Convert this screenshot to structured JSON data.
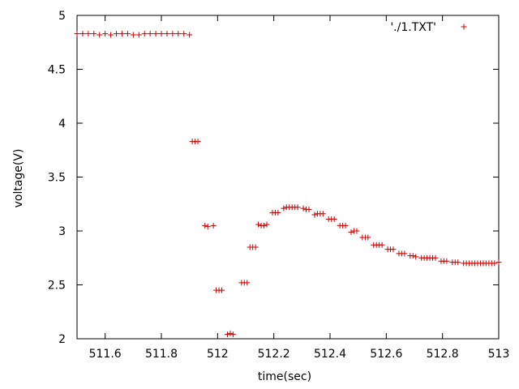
{
  "chart_data": {
    "type": "scatter",
    "xlabel": "time(sec)",
    "ylabel": "voltage(V)",
    "xlim": [
      511.5,
      513
    ],
    "ylim": [
      2,
      5
    ],
    "x_ticks": [
      "511.6",
      "511.8",
      "512",
      "512.2",
      "512.4",
      "512.6",
      "512.8",
      "513"
    ],
    "x_tick_values": [
      511.6,
      511.8,
      512.0,
      512.2,
      512.4,
      512.6,
      512.8,
      513.0
    ],
    "y_ticks": [
      "2",
      "2.5",
      "3",
      "3.5",
      "4",
      "4.5",
      "5"
    ],
    "y_tick_values": [
      2,
      2.5,
      3,
      3.5,
      4,
      4.5,
      5
    ],
    "grid": false,
    "legend_position": "top-right",
    "series": [
      {
        "name": "'./1.TXT'",
        "color": "#cc0000",
        "marker": "plus",
        "points": [
          [
            511.5,
            4.83
          ],
          [
            511.52,
            4.83
          ],
          [
            511.54,
            4.83
          ],
          [
            511.56,
            4.83
          ],
          [
            511.58,
            4.82
          ],
          [
            511.6,
            4.83
          ],
          [
            511.62,
            4.82
          ],
          [
            511.64,
            4.83
          ],
          [
            511.66,
            4.83
          ],
          [
            511.68,
            4.83
          ],
          [
            511.7,
            4.82
          ],
          [
            511.72,
            4.82
          ],
          [
            511.74,
            4.83
          ],
          [
            511.76,
            4.83
          ],
          [
            511.78,
            4.83
          ],
          [
            511.8,
            4.83
          ],
          [
            511.82,
            4.83
          ],
          [
            511.84,
            4.83
          ],
          [
            511.86,
            4.83
          ],
          [
            511.88,
            4.83
          ],
          [
            511.9,
            4.82
          ],
          [
            511.91,
            3.83
          ],
          [
            511.92,
            3.83
          ],
          [
            511.93,
            3.83
          ],
          [
            511.955,
            3.05
          ],
          [
            511.965,
            3.04
          ],
          [
            511.985,
            3.05
          ],
          [
            511.995,
            2.45
          ],
          [
            512.005,
            2.45
          ],
          [
            512.015,
            2.45
          ],
          [
            512.035,
            2.04
          ],
          [
            512.045,
            2.05
          ],
          [
            512.055,
            2.04
          ],
          [
            512.085,
            2.52
          ],
          [
            512.095,
            2.52
          ],
          [
            512.105,
            2.52
          ],
          [
            512.115,
            2.85
          ],
          [
            512.125,
            2.85
          ],
          [
            512.135,
            2.85
          ],
          [
            512.145,
            3.06
          ],
          [
            512.155,
            3.05
          ],
          [
            512.165,
            3.05
          ],
          [
            512.175,
            3.06
          ],
          [
            512.195,
            3.17
          ],
          [
            512.205,
            3.17
          ],
          [
            512.215,
            3.17
          ],
          [
            512.235,
            3.21
          ],
          [
            512.245,
            3.22
          ],
          [
            512.255,
            3.22
          ],
          [
            512.265,
            3.22
          ],
          [
            512.275,
            3.22
          ],
          [
            512.285,
            3.22
          ],
          [
            512.305,
            3.21
          ],
          [
            512.315,
            3.2
          ],
          [
            512.325,
            3.2
          ],
          [
            512.345,
            3.15
          ],
          [
            512.355,
            3.16
          ],
          [
            512.365,
            3.16
          ],
          [
            512.375,
            3.16
          ],
          [
            512.395,
            3.11
          ],
          [
            512.405,
            3.11
          ],
          [
            512.415,
            3.11
          ],
          [
            512.435,
            3.05
          ],
          [
            512.445,
            3.05
          ],
          [
            512.455,
            3.05
          ],
          [
            512.475,
            2.99
          ],
          [
            512.485,
            3.0
          ],
          [
            512.495,
            3.0
          ],
          [
            512.515,
            2.94
          ],
          [
            512.525,
            2.94
          ],
          [
            512.535,
            2.94
          ],
          [
            512.555,
            2.87
          ],
          [
            512.565,
            2.87
          ],
          [
            512.575,
            2.87
          ],
          [
            512.585,
            2.87
          ],
          [
            512.605,
            2.83
          ],
          [
            512.615,
            2.83
          ],
          [
            512.625,
            2.83
          ],
          [
            512.645,
            2.79
          ],
          [
            512.655,
            2.79
          ],
          [
            512.665,
            2.79
          ],
          [
            512.685,
            2.77
          ],
          [
            512.695,
            2.77
          ],
          [
            512.705,
            2.76
          ],
          [
            512.725,
            2.75
          ],
          [
            512.735,
            2.75
          ],
          [
            512.745,
            2.75
          ],
          [
            512.755,
            2.75
          ],
          [
            512.765,
            2.75
          ],
          [
            512.775,
            2.75
          ],
          [
            512.795,
            2.72
          ],
          [
            512.805,
            2.72
          ],
          [
            512.815,
            2.72
          ],
          [
            512.835,
            2.71
          ],
          [
            512.845,
            2.71
          ],
          [
            512.855,
            2.71
          ],
          [
            512.875,
            2.7
          ],
          [
            512.885,
            2.7
          ],
          [
            512.895,
            2.7
          ],
          [
            512.905,
            2.7
          ],
          [
            512.915,
            2.7
          ],
          [
            512.925,
            2.7
          ],
          [
            512.935,
            2.7
          ],
          [
            512.945,
            2.7
          ],
          [
            512.955,
            2.7
          ],
          [
            512.965,
            2.7
          ],
          [
            512.975,
            2.7
          ],
          [
            512.985,
            2.7
          ],
          [
            513.0,
            2.71
          ]
        ]
      }
    ]
  }
}
